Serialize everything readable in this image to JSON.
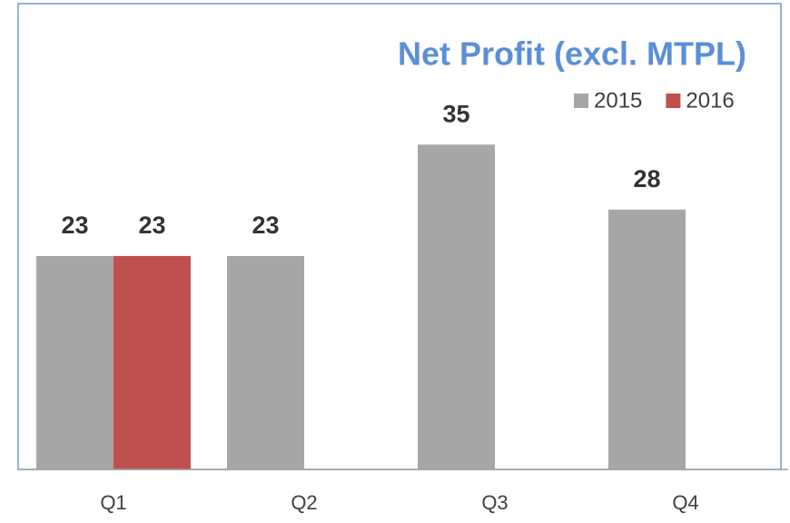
{
  "chart_data": {
    "type": "bar",
    "title": "Net Profit (excl. MTPL)",
    "categories": [
      "Q1",
      "Q2",
      "Q3",
      "Q4"
    ],
    "series": [
      {
        "name": "2015",
        "color": "#a6a6a6",
        "values": [
          23,
          23,
          35,
          28
        ]
      },
      {
        "name": "2016",
        "color": "#c0504d",
        "values": [
          23,
          null,
          null,
          null
        ]
      }
    ],
    "ylim": [
      0,
      50
    ],
    "legend": "top-right",
    "grid": false
  }
}
